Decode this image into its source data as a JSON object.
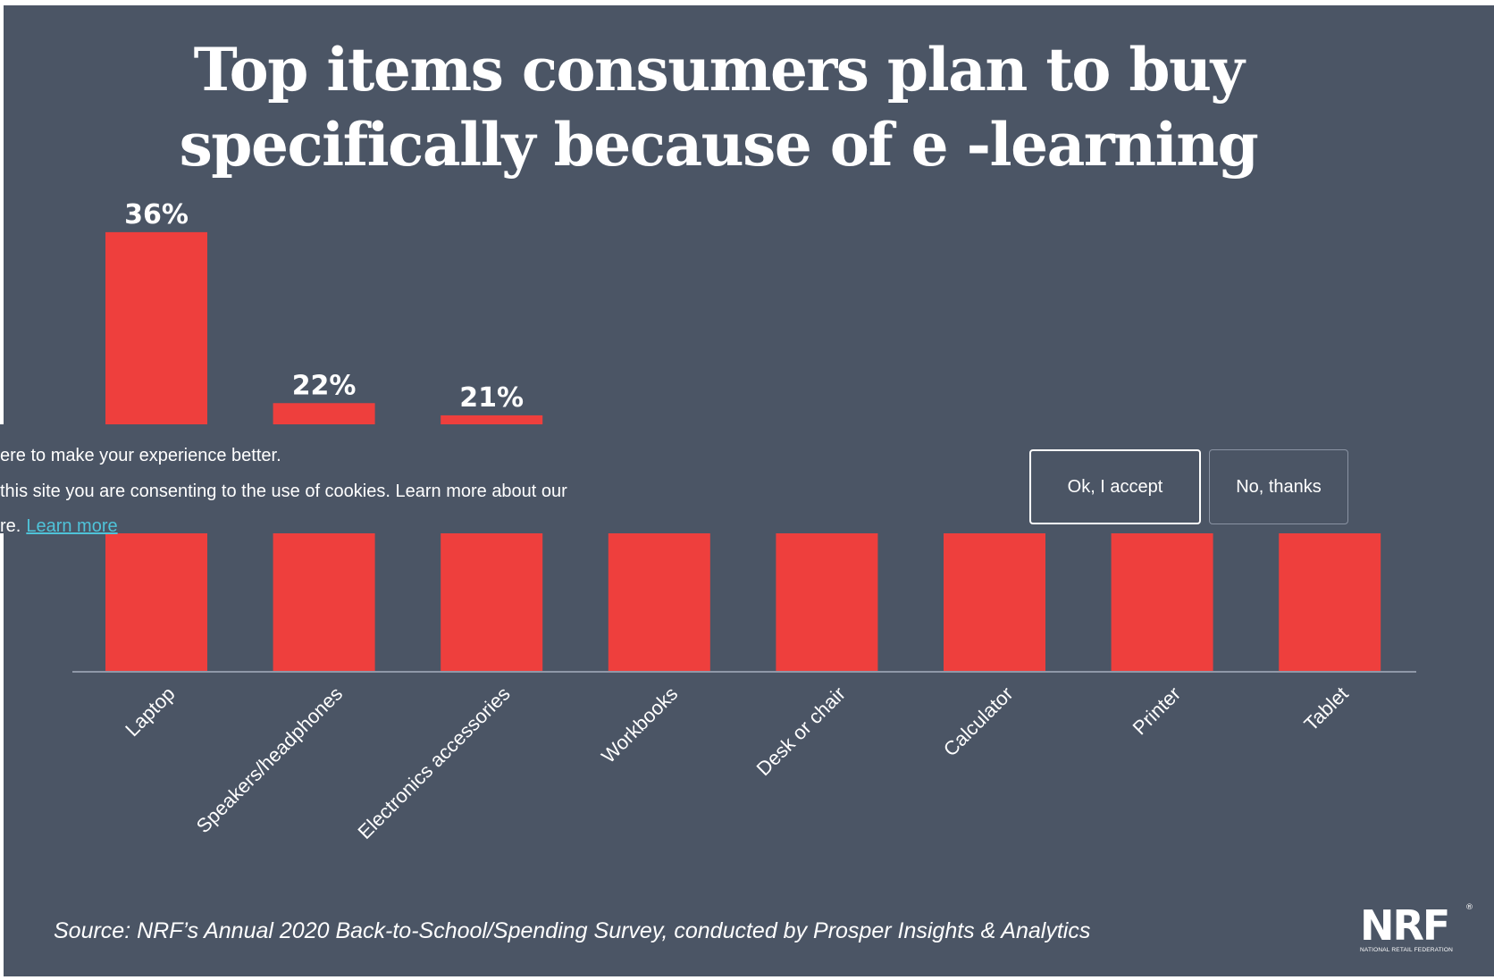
{
  "title_lines": [
    "Top items consumers plan to buy",
    "specifically because of e -learning"
  ],
  "colors": {
    "background": "#4b5565",
    "bar": "#ee3f3d",
    "text": "#ffffff",
    "link": "#4fc3d9"
  },
  "chart_data": {
    "type": "bar",
    "title": "Top items consumers plan to buy specifically because of e -learning",
    "categories": [
      "Laptop",
      "Speakers/headphones",
      "Electronics accessories",
      "Workbooks",
      "Desk or chair",
      "Calculator",
      "Printer",
      "Tablet"
    ],
    "values": [
      36,
      22,
      21,
      null,
      null,
      null,
      null,
      null
    ],
    "value_labels": [
      "36%",
      "22%",
      "21%",
      "",
      "",
      "",
      "",
      ""
    ],
    "xlabel": "",
    "ylabel": "",
    "ylim": [
      0,
      40
    ],
    "grid": false,
    "legend": "none",
    "note": "Bars for Workbooks through Tablet are partially hidden by the cookie banner; their values are not visible."
  },
  "cookie_banner": {
    "line1": "ere to make your experience better.",
    "line2": " this site you are consenting to the use of cookies. Learn more about our",
    "line3": "re.",
    "link_text": "Learn more",
    "accept_label": "Ok, I accept",
    "decline_label": "No, thanks"
  },
  "source": "Source: NRF’s Annual 2020 Back-to-School/Spending Survey, conducted by Prosper Insights & Analytics",
  "logo": {
    "mark": "NRF",
    "tagline": "NATIONAL RETAIL FEDERATION",
    "reg": "®"
  }
}
